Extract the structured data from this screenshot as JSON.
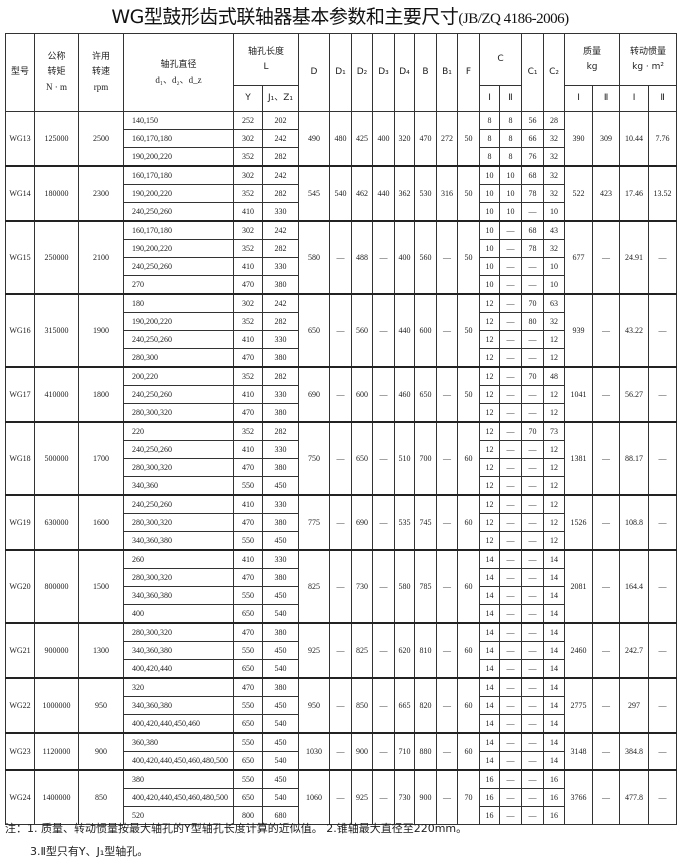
{
  "title": "WG型鼓形齿式联轴器基本参数和主要尺寸",
  "standard": "(JB/ZQ 4186-2006)",
  "headers": {
    "model": "型号",
    "torque": [
      "公称",
      "转矩",
      "N · m"
    ],
    "speed": [
      "许用",
      "转速",
      "rpm"
    ],
    "bore": [
      "轴孔直径",
      "d₁、d₂、d_z"
    ],
    "length": [
      "轴孔长度",
      "L"
    ],
    "Y": "Y",
    "J": "J₁、Z₁",
    "D": "D",
    "D1": "D₁",
    "D2": "D₂",
    "D3": "D₃",
    "D4": "D₄",
    "B": "B",
    "B1": "B₁",
    "F": "F",
    "C": "C",
    "C1": "C₁",
    "C2": "C₂",
    "mass": [
      "质量",
      "kg"
    ],
    "inertia": [
      "转动惯量",
      "kg · m²"
    ],
    "I": "Ⅰ",
    "II": "Ⅱ"
  },
  "models": [
    {
      "model": "WG13",
      "torque": "125000",
      "speed": "2500",
      "rows": [
        [
          "140,150",
          "252",
          "202"
        ],
        [
          "160,170,180",
          "302",
          "242"
        ],
        [
          "190,200,220",
          "352",
          "282"
        ]
      ],
      "D": "490",
      "D1": "480",
      "D2": "425",
      "D3": "400",
      "D4": "320",
      "B": "470",
      "B1": "272",
      "F": "50",
      "c": [
        [
          "8",
          "8",
          "56",
          "28"
        ],
        [
          "8",
          "8",
          "66",
          "32"
        ],
        [
          "8",
          "8",
          "76",
          "32"
        ]
      ],
      "mI": "390",
      "mII": "309",
      "iI": "10.44",
      "iII": "7.76"
    },
    {
      "model": "WG14",
      "torque": "180000",
      "speed": "2300",
      "rows": [
        [
          "160,170,180",
          "302",
          "242"
        ],
        [
          "190,200,220",
          "352",
          "282"
        ],
        [
          "240,250,260",
          "410",
          "330"
        ]
      ],
      "D": "545",
      "D1": "540",
      "D2": "462",
      "D3": "440",
      "D4": "362",
      "B": "530",
      "B1": "316",
      "F": "50",
      "c": [
        [
          "10",
          "10",
          "68",
          "32"
        ],
        [
          "10",
          "10",
          "78",
          "32"
        ],
        [
          "10",
          "10",
          "—",
          "10"
        ]
      ],
      "mI": "522",
      "mII": "423",
      "iI": "17.46",
      "iII": "13.52"
    },
    {
      "model": "WG15",
      "torque": "250000",
      "speed": "2100",
      "rows": [
        [
          "160,170,180",
          "302",
          "242"
        ],
        [
          "190,200,220",
          "352",
          "282"
        ],
        [
          "240,250,260",
          "410",
          "330"
        ],
        [
          "270",
          "470",
          "380"
        ]
      ],
      "D": "580",
      "D1": "—",
      "D2": "488",
      "D3": "—",
      "D4": "400",
      "B": "560",
      "B1": "—",
      "F": "50",
      "c": [
        [
          "10",
          "—",
          "68",
          "43"
        ],
        [
          "10",
          "—",
          "78",
          "32"
        ],
        [
          "10",
          "—",
          "—",
          "10"
        ],
        [
          "10",
          "—",
          "—",
          "10"
        ]
      ],
      "mI": "677",
      "mII": "—",
      "iI": "24.91",
      "iII": "—"
    },
    {
      "model": "WG16",
      "torque": "315000",
      "speed": "1900",
      "rows": [
        [
          "180",
          "302",
          "242"
        ],
        [
          "190,200,220",
          "352",
          "282"
        ],
        [
          "240,250,260",
          "410",
          "330"
        ],
        [
          "280,300",
          "470",
          "380"
        ]
      ],
      "D": "650",
      "D1": "—",
      "D2": "560",
      "D3": "—",
      "D4": "440",
      "B": "600",
      "B1": "—",
      "F": "50",
      "c": [
        [
          "12",
          "—",
          "70",
          "63"
        ],
        [
          "12",
          "—",
          "80",
          "32"
        ],
        [
          "12",
          "—",
          "—",
          "12"
        ],
        [
          "12",
          "—",
          "—",
          "12"
        ]
      ],
      "mI": "939",
      "mII": "—",
      "iI": "43.22",
      "iII": "—"
    },
    {
      "model": "WG17",
      "torque": "410000",
      "speed": "1800",
      "rows": [
        [
          "200,220",
          "352",
          "282"
        ],
        [
          "240,250,260",
          "410",
          "330"
        ],
        [
          "280,300,320",
          "470",
          "380"
        ]
      ],
      "D": "690",
      "D1": "—",
      "D2": "600",
      "D3": "—",
      "D4": "460",
      "B": "650",
      "B1": "—",
      "F": "50",
      "c": [
        [
          "12",
          "—",
          "70",
          "48"
        ],
        [
          "12",
          "—",
          "—",
          "12"
        ],
        [
          "12",
          "—",
          "—",
          "12"
        ]
      ],
      "mI": "1041",
      "mII": "—",
      "iI": "56.27",
      "iII": "—"
    },
    {
      "model": "WG18",
      "torque": "500000",
      "speed": "1700",
      "rows": [
        [
          "220",
          "352",
          "282"
        ],
        [
          "240,250,260",
          "410",
          "330"
        ],
        [
          "280,300,320",
          "470",
          "380"
        ],
        [
          "340,360",
          "550",
          "450"
        ]
      ],
      "D": "750",
      "D1": "—",
      "D2": "650",
      "D3": "—",
      "D4": "510",
      "B": "700",
      "B1": "—",
      "F": "60",
      "c": [
        [
          "12",
          "—",
          "70",
          "73"
        ],
        [
          "12",
          "—",
          "—",
          "12"
        ],
        [
          "12",
          "—",
          "—",
          "12"
        ],
        [
          "12",
          "—",
          "—",
          "12"
        ]
      ],
      "mI": "1381",
      "mII": "—",
      "iI": "88.17",
      "iII": "—"
    },
    {
      "model": "WG19",
      "torque": "630000",
      "speed": "1600",
      "rows": [
        [
          "240,250,260",
          "410",
          "330"
        ],
        [
          "280,300,320",
          "470",
          "380"
        ],
        [
          "340,360,380",
          "550",
          "450"
        ]
      ],
      "D": "775",
      "D1": "—",
      "D2": "690",
      "D3": "—",
      "D4": "535",
      "B": "745",
      "B1": "—",
      "F": "60",
      "c": [
        [
          "12",
          "—",
          "—",
          "12"
        ],
        [
          "12",
          "—",
          "—",
          "12"
        ],
        [
          "12",
          "—",
          "—",
          "12"
        ]
      ],
      "mI": "1526",
      "mII": "—",
      "iI": "108.8",
      "iII": "—"
    },
    {
      "model": "WG20",
      "torque": "800000",
      "speed": "1500",
      "rows": [
        [
          "260",
          "410",
          "330"
        ],
        [
          "280,300,320",
          "470",
          "380"
        ],
        [
          "340,360,380",
          "550",
          "450"
        ],
        [
          "400",
          "650",
          "540"
        ]
      ],
      "D": "825",
      "D1": "—",
      "D2": "730",
      "D3": "—",
      "D4": "580",
      "B": "785",
      "B1": "—",
      "F": "60",
      "c": [
        [
          "14",
          "—",
          "—",
          "14"
        ],
        [
          "14",
          "—",
          "—",
          "14"
        ],
        [
          "14",
          "—",
          "—",
          "14"
        ],
        [
          "14",
          "—",
          "—",
          "14"
        ]
      ],
      "mI": "2081",
      "mII": "—",
      "iI": "164.4",
      "iII": "—"
    },
    {
      "model": "WG21",
      "torque": "900000",
      "speed": "1300",
      "rows": [
        [
          "280,300,320",
          "470",
          "380"
        ],
        [
          "340,360,380",
          "550",
          "450"
        ],
        [
          "400,420,440",
          "650",
          "540"
        ]
      ],
      "D": "925",
      "D1": "—",
      "D2": "825",
      "D3": "—",
      "D4": "620",
      "B": "810",
      "B1": "—",
      "F": "60",
      "c": [
        [
          "14",
          "—",
          "—",
          "14"
        ],
        [
          "14",
          "—",
          "—",
          "14"
        ],
        [
          "14",
          "—",
          "—",
          "14"
        ]
      ],
      "mI": "2460",
      "mII": "—",
      "iI": "242.7",
      "iII": "—"
    },
    {
      "model": "WG22",
      "torque": "1000000",
      "speed": "950",
      "rows": [
        [
          "320",
          "470",
          "380"
        ],
        [
          "340,360,380",
          "550",
          "450"
        ],
        [
          "400,420,440,450,460",
          "650",
          "540"
        ]
      ],
      "D": "950",
      "D1": "—",
      "D2": "850",
      "D3": "—",
      "D4": "665",
      "B": "820",
      "B1": "—",
      "F": "60",
      "c": [
        [
          "14",
          "—",
          "—",
          "14"
        ],
        [
          "14",
          "—",
          "—",
          "14"
        ],
        [
          "14",
          "—",
          "—",
          "14"
        ]
      ],
      "mI": "2775",
      "mII": "—",
      "iI": "297",
      "iII": "—"
    },
    {
      "model": "WG23",
      "torque": "1120000",
      "speed": "900",
      "rows": [
        [
          "360,380",
          "550",
          "450"
        ],
        [
          "400,420,440,450,460,480,500",
          "650",
          "540"
        ]
      ],
      "D": "1030",
      "D1": "—",
      "D2": "900",
      "D3": "—",
      "D4": "710",
      "B": "880",
      "B1": "—",
      "F": "60",
      "c": [
        [
          "14",
          "—",
          "—",
          "14"
        ],
        [
          "14",
          "—",
          "—",
          "14"
        ]
      ],
      "mI": "3148",
      "mII": "—",
      "iI": "384.8",
      "iII": "—"
    },
    {
      "model": "WG24",
      "torque": "1400000",
      "speed": "850",
      "rows": [
        [
          "380",
          "550",
          "450"
        ],
        [
          "400,420,440,450,460,480,500",
          "650",
          "540"
        ],
        [
          "520",
          "800",
          "680"
        ]
      ],
      "D": "1060",
      "D1": "—",
      "D2": "925",
      "D3": "—",
      "D4": "730",
      "B": "900",
      "B1": "—",
      "F": "70",
      "c": [
        [
          "16",
          "—",
          "—",
          "16"
        ],
        [
          "16",
          "—",
          "—",
          "16"
        ],
        [
          "16",
          "—",
          "—",
          "16"
        ]
      ],
      "mI": "3766",
      "mII": "—",
      "iI": "477.8",
      "iII": "—"
    }
  ],
  "notes": [
    "注：1. 质量、转动惯量按最大轴孔的Y型轴孔长度计算的近似值。  2.锥轴最大直径至220mm。",
    "3.Ⅱ型只有Y、J₁型轴孔。"
  ]
}
